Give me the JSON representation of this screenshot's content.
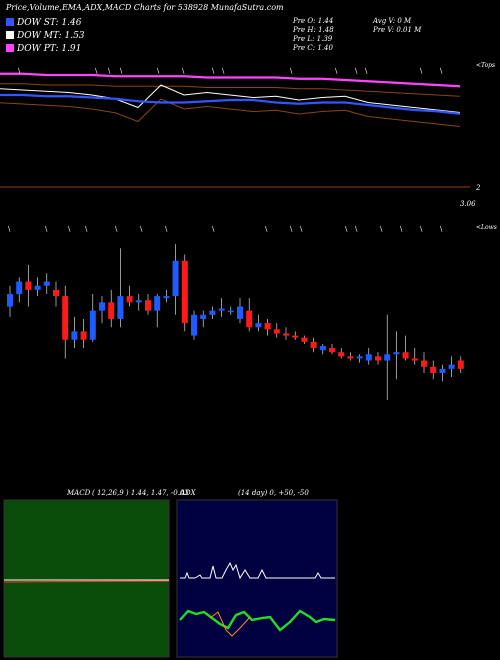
{
  "header": {
    "title": "Price,Volume,EMA,ADX,MACD Charts for 538928  MunafaSutra.com"
  },
  "legend": [
    {
      "label": "DOW ST: 1.46",
      "color": "#3355ff"
    },
    {
      "label": "DOW MT: 1.53",
      "color": "#ffffff"
    },
    {
      "label": "DOW PT: 1.91",
      "color": "#ff44ff"
    }
  ],
  "ohlc": {
    "open": "Pre  O: 1.44",
    "high": "Pre  H: 1.48",
    "low": "Pre  L: 1.39",
    "close": "Pre  C: 1.40",
    "avg_vol": "Avg V: 0  M",
    "pre_vol": "Pre  V: 0.01 M"
  },
  "labels": {
    "upper_right": "<Tops",
    "lower_right": "<Lows",
    "ema_level": "2",
    "price_level": "3.06"
  },
  "macd": {
    "title": "MACD",
    "params": "( 12,26,9 ) 1.44,  1.47,  -0.03"
  },
  "adx": {
    "title": "ADX",
    "params": "(14  day) 0,  +50,  -50"
  },
  "colors": {
    "up": "#1e5cff",
    "down": "#ff1a1a",
    "ema_fast": "#3355ff",
    "ema_mid": "#ffffff",
    "ema_slow": "#ff44ff",
    "band": "#8b4513",
    "macd_bg": "#0a4d0a",
    "adx_bg": "#000040"
  },
  "chart_data": {
    "type": "candlestick",
    "series": [
      {
        "o": 1.5,
        "h": 1.6,
        "l": 1.45,
        "c": 1.56
      },
      {
        "o": 1.56,
        "h": 1.64,
        "l": 1.52,
        "c": 1.62
      },
      {
        "o": 1.62,
        "h": 1.7,
        "l": 1.5,
        "c": 1.58
      },
      {
        "o": 1.58,
        "h": 1.64,
        "l": 1.55,
        "c": 1.6
      },
      {
        "o": 1.6,
        "h": 1.66,
        "l": 1.56,
        "c": 1.62
      },
      {
        "o": 1.58,
        "h": 1.62,
        "l": 1.5,
        "c": 1.55
      },
      {
        "o": 1.55,
        "h": 1.6,
        "l": 1.25,
        "c": 1.34
      },
      {
        "o": 1.34,
        "h": 1.45,
        "l": 1.3,
        "c": 1.38
      },
      {
        "o": 1.38,
        "h": 1.44,
        "l": 1.3,
        "c": 1.34
      },
      {
        "o": 1.34,
        "h": 1.56,
        "l": 1.33,
        "c": 1.48
      },
      {
        "o": 1.48,
        "h": 1.55,
        "l": 1.42,
        "c": 1.52
      },
      {
        "o": 1.52,
        "h": 1.58,
        "l": 1.4,
        "c": 1.44
      },
      {
        "o": 1.44,
        "h": 1.78,
        "l": 1.4,
        "c": 1.55
      },
      {
        "o": 1.55,
        "h": 1.6,
        "l": 1.5,
        "c": 1.52
      },
      {
        "o": 1.52,
        "h": 1.56,
        "l": 1.48,
        "c": 1.53
      },
      {
        "o": 1.53,
        "h": 1.56,
        "l": 1.46,
        "c": 1.48
      },
      {
        "o": 1.48,
        "h": 1.56,
        "l": 1.4,
        "c": 1.55
      },
      {
        "o": 1.54,
        "h": 1.58,
        "l": 1.52,
        "c": 1.55
      },
      {
        "o": 1.55,
        "h": 1.8,
        "l": 1.46,
        "c": 1.72
      },
      {
        "o": 1.72,
        "h": 1.75,
        "l": 1.38,
        "c": 1.42
      },
      {
        "o": 1.36,
        "h": 1.48,
        "l": 1.34,
        "c": 1.46
      },
      {
        "o": 1.44,
        "h": 1.48,
        "l": 1.4,
        "c": 1.46
      },
      {
        "o": 1.46,
        "h": 1.5,
        "l": 1.44,
        "c": 1.48
      },
      {
        "o": 1.48,
        "h": 1.54,
        "l": 1.45,
        "c": 1.49
      },
      {
        "o": 1.48,
        "h": 1.5,
        "l": 1.46,
        "c": 1.48
      },
      {
        "o": 1.44,
        "h": 1.54,
        "l": 1.42,
        "c": 1.5
      },
      {
        "o": 1.48,
        "h": 1.54,
        "l": 1.38,
        "c": 1.4
      },
      {
        "o": 1.4,
        "h": 1.46,
        "l": 1.38,
        "c": 1.42
      },
      {
        "o": 1.42,
        "h": 1.44,
        "l": 1.36,
        "c": 1.39
      },
      {
        "o": 1.39,
        "h": 1.42,
        "l": 1.35,
        "c": 1.37
      },
      {
        "o": 1.37,
        "h": 1.4,
        "l": 1.34,
        "c": 1.36
      },
      {
        "o": 1.36,
        "h": 1.38,
        "l": 1.34,
        "c": 1.35
      },
      {
        "o": 1.35,
        "h": 1.36,
        "l": 1.32,
        "c": 1.33
      },
      {
        "o": 1.33,
        "h": 1.35,
        "l": 1.28,
        "c": 1.3
      },
      {
        "o": 1.29,
        "h": 1.32,
        "l": 1.27,
        "c": 1.31
      },
      {
        "o": 1.3,
        "h": 1.32,
        "l": 1.27,
        "c": 1.28
      },
      {
        "o": 1.28,
        "h": 1.3,
        "l": 1.25,
        "c": 1.26
      },
      {
        "o": 1.26,
        "h": 1.28,
        "l": 1.24,
        "c": 1.25
      },
      {
        "o": 1.25,
        "h": 1.27,
        "l": 1.23,
        "c": 1.26
      },
      {
        "o": 1.24,
        "h": 1.3,
        "l": 1.22,
        "c": 1.27
      },
      {
        "o": 1.26,
        "h": 1.28,
        "l": 1.22,
        "c": 1.24
      },
      {
        "o": 1.24,
        "h": 1.46,
        "l": 1.05,
        "c": 1.27
      },
      {
        "o": 1.27,
        "h": 1.38,
        "l": 1.15,
        "c": 1.28
      },
      {
        "o": 1.28,
        "h": 1.36,
        "l": 1.24,
        "c": 1.25
      },
      {
        "o": 1.25,
        "h": 1.3,
        "l": 1.22,
        "c": 1.24
      },
      {
        "o": 1.24,
        "h": 1.28,
        "l": 1.18,
        "c": 1.21
      },
      {
        "o": 1.21,
        "h": 1.24,
        "l": 1.15,
        "c": 1.18
      },
      {
        "o": 1.18,
        "h": 1.22,
        "l": 1.14,
        "c": 1.2
      },
      {
        "o": 1.2,
        "h": 1.26,
        "l": 1.16,
        "c": 1.22
      },
      {
        "o": 1.24,
        "h": 1.26,
        "l": 1.18,
        "c": 1.2
      }
    ],
    "ema": {
      "dow_pt": [
        0.97,
        0.97,
        0.96,
        0.96,
        0.96,
        0.95,
        0.95,
        0.95,
        0.95,
        0.94,
        0.94,
        0.94,
        0.94,
        0.93,
        0.93,
        0.92,
        0.91,
        0.9,
        0.89,
        0.88,
        0.87
      ],
      "dow_mt": [
        0.85,
        0.84,
        0.83,
        0.82,
        0.8,
        0.77,
        0.7,
        0.88,
        0.8,
        0.82,
        0.8,
        0.78,
        0.79,
        0.76,
        0.78,
        0.79,
        0.74,
        0.72,
        0.7,
        0.68,
        0.66
      ],
      "dow_st": [
        0.8,
        0.8,
        0.79,
        0.79,
        0.78,
        0.77,
        0.75,
        0.74,
        0.74,
        0.75,
        0.76,
        0.76,
        0.74,
        0.73,
        0.74,
        0.74,
        0.72,
        0.7,
        0.68,
        0.67,
        0.65
      ]
    }
  }
}
